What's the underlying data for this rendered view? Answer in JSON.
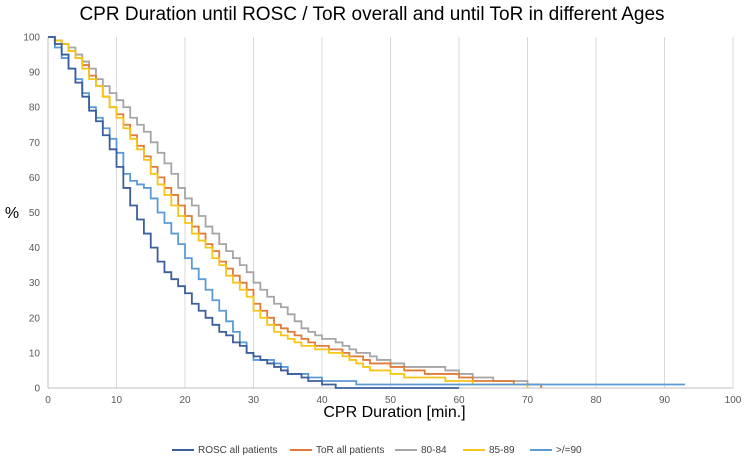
{
  "chart_data": {
    "type": "line",
    "title": "CPR Duration until ROSC / ToR overall and until ToR in different Ages",
    "xlabel": "CPR Duration [min.]",
    "ylabel": "%",
    "xlim": [
      0,
      100
    ],
    "ylim": [
      0,
      100
    ],
    "xticks": [
      "0",
      "10",
      "20",
      "30",
      "40",
      "50",
      "60",
      "70",
      "80",
      "90",
      "100"
    ],
    "yticks": [
      "0",
      "10",
      "20",
      "30",
      "40",
      "50",
      "60",
      "70",
      "80",
      "90",
      "100"
    ],
    "grid": "vertical",
    "legend_position": "bottom",
    "series": [
      {
        "name": "ROSC all patients",
        "color": "#3a5f9c",
        "x": [
          0,
          1,
          2,
          3,
          4,
          5,
          6,
          7,
          8,
          9,
          10,
          11,
          12,
          13,
          14,
          15,
          16,
          17,
          18,
          19,
          20,
          21,
          22,
          23,
          24,
          25,
          26,
          27,
          28,
          29,
          30,
          31,
          32,
          33,
          34,
          35,
          36,
          37,
          38,
          39,
          40,
          41,
          42,
          45,
          50,
          55,
          60
        ],
        "y": [
          100,
          98,
          95,
          91,
          87,
          83,
          79,
          76,
          72,
          68,
          63,
          57,
          52,
          48,
          44,
          40,
          36,
          33,
          31,
          29,
          27,
          24,
          22,
          20,
          18,
          16,
          15,
          13,
          12,
          10,
          9,
          8,
          7,
          6,
          5,
          4,
          4,
          3,
          2,
          2,
          1,
          1,
          0,
          0,
          0,
          0,
          0
        ]
      },
      {
        "name": "ToR all patients",
        "color": "#e07b39",
        "x": [
          0,
          1,
          2,
          3,
          4,
          5,
          6,
          7,
          8,
          9,
          10,
          11,
          12,
          13,
          14,
          15,
          16,
          17,
          18,
          19,
          20,
          21,
          22,
          23,
          24,
          25,
          26,
          27,
          28,
          29,
          30,
          31,
          32,
          33,
          34,
          35,
          36,
          37,
          38,
          39,
          40,
          41,
          42,
          43,
          44,
          45,
          46,
          47,
          48,
          50,
          52,
          55,
          58,
          60,
          62,
          65,
          68,
          70,
          72
        ],
        "y": [
          100,
          99,
          98,
          96,
          94,
          92,
          89,
          86,
          83,
          80,
          78,
          75,
          72,
          69,
          66,
          63,
          60,
          57,
          55,
          52,
          49,
          46,
          44,
          41,
          39,
          36,
          34,
          32,
          30,
          28,
          24,
          22,
          20,
          18,
          17,
          16,
          15,
          14,
          13,
          12,
          12,
          11,
          11,
          10,
          9,
          9,
          8,
          7,
          7,
          6,
          5,
          4,
          4,
          3,
          2,
          2,
          1,
          1,
          0
        ]
      },
      {
        "name": "80-84",
        "color": "#a5a5a5",
        "x": [
          0,
          1,
          2,
          3,
          4,
          5,
          6,
          7,
          8,
          9,
          10,
          11,
          12,
          13,
          14,
          15,
          16,
          17,
          18,
          19,
          20,
          21,
          22,
          23,
          24,
          25,
          26,
          27,
          28,
          29,
          30,
          31,
          32,
          33,
          34,
          35,
          36,
          37,
          38,
          39,
          40,
          41,
          42,
          43,
          44,
          45,
          46,
          47,
          48,
          50,
          52,
          55,
          58,
          60,
          62,
          65,
          68,
          70,
          72
        ],
        "y": [
          100,
          99,
          98,
          97,
          95,
          93,
          91,
          88,
          86,
          84,
          82,
          80,
          77,
          75,
          73,
          70,
          67,
          64,
          61,
          57,
          54,
          52,
          49,
          46,
          44,
          41,
          39,
          37,
          35,
          33,
          30,
          28,
          26,
          24,
          23,
          21,
          19,
          17,
          16,
          15,
          14,
          14,
          13,
          12,
          11,
          10,
          10,
          9,
          8,
          7,
          6,
          6,
          5,
          4,
          3,
          2,
          2,
          1,
          0
        ]
      },
      {
        "name": "85-89",
        "color": "#f5c518",
        "x": [
          0,
          1,
          2,
          3,
          4,
          5,
          6,
          7,
          8,
          9,
          10,
          11,
          12,
          13,
          14,
          15,
          16,
          17,
          18,
          19,
          20,
          21,
          22,
          23,
          24,
          25,
          26,
          27,
          28,
          29,
          30,
          31,
          32,
          33,
          34,
          35,
          36,
          37,
          38,
          39,
          40,
          41,
          42,
          43,
          44,
          45,
          46,
          47,
          48,
          50,
          52,
          55,
          58,
          60,
          62,
          65,
          68,
          70
        ],
        "y": [
          100,
          99,
          98,
          96,
          94,
          91,
          88,
          86,
          83,
          80,
          77,
          74,
          71,
          68,
          65,
          61,
          58,
          55,
          52,
          49,
          47,
          44,
          42,
          40,
          37,
          35,
          32,
          30,
          28,
          26,
          22,
          20,
          18,
          16,
          15,
          14,
          13,
          12,
          12,
          11,
          11,
          10,
          10,
          9,
          8,
          7,
          6,
          5,
          5,
          4,
          3,
          3,
          2,
          2,
          1,
          1,
          1,
          0
        ]
      },
      {
        "name": ">/=90",
        "color": "#5b9bd5",
        "x": [
          0,
          1,
          2,
          3,
          4,
          5,
          6,
          7,
          8,
          9,
          10,
          11,
          12,
          13,
          14,
          15,
          16,
          17,
          18,
          19,
          20,
          21,
          22,
          23,
          24,
          25,
          26,
          27,
          28,
          29,
          30,
          31,
          32,
          33,
          34,
          35,
          36,
          37,
          38,
          39,
          40,
          41,
          42,
          45,
          50,
          55,
          60,
          65,
          70,
          93
        ],
        "y": [
          100,
          97,
          94,
          91,
          88,
          84,
          80,
          77,
          74,
          71,
          67,
          61,
          59,
          58,
          57,
          54,
          50,
          47,
          44,
          41,
          37,
          34,
          31,
          28,
          25,
          22,
          19,
          16,
          13,
          10,
          8,
          8,
          8,
          7,
          6,
          4,
          4,
          4,
          3,
          3,
          2,
          2,
          2,
          1,
          1,
          1,
          1,
          1,
          1,
          1
        ]
      }
    ]
  }
}
